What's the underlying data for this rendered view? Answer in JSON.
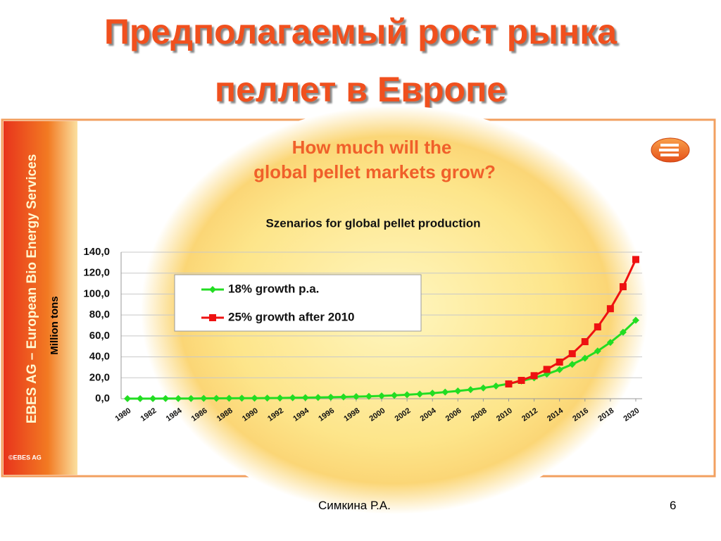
{
  "slide": {
    "title_line1": "Предполагаемый рост рынка",
    "title_line2": "пеллет в Европе",
    "footer_author": "Симкина Р.А.",
    "page_number": "6"
  },
  "sidebar": {
    "text": "EBES AG – European Bio Energy Services",
    "copyright": "©EBES AG"
  },
  "chart_data": {
    "type": "line",
    "title": "How much will the global pellet markets grow?",
    "subtitle": "Szenarios for global pellet production",
    "y_label": "Million tons",
    "x": [
      1980,
      1981,
      1982,
      1983,
      1984,
      1985,
      1986,
      1987,
      1988,
      1989,
      1990,
      1991,
      1992,
      1993,
      1994,
      1995,
      1996,
      1997,
      1998,
      1999,
      2000,
      2001,
      2002,
      2003,
      2004,
      2005,
      2006,
      2007,
      2008,
      2009,
      2010,
      2011,
      2012,
      2013,
      2014,
      2015,
      2016,
      2017,
      2018,
      2019,
      2020
    ],
    "series": [
      {
        "name": "18% growth p.a.",
        "color": "#22dd22",
        "marker": "diamond",
        "values": [
          0.1,
          0.1,
          0.1,
          0.2,
          0.2,
          0.2,
          0.3,
          0.3,
          0.4,
          0.5,
          0.5,
          0.6,
          0.7,
          0.9,
          1.0,
          1.2,
          1.4,
          1.7,
          2.0,
          2.3,
          2.7,
          3.2,
          3.8,
          4.5,
          5.3,
          6.3,
          7.4,
          8.7,
          10.3,
          12.1,
          14.3,
          16.9,
          19.9,
          23.5,
          27.8,
          32.8,
          38.7,
          45.6,
          53.8,
          63.5,
          75.0
        ]
      },
      {
        "name": "25% growth after 2010",
        "color": "#ee1111",
        "marker": "square",
        "values": [
          null,
          null,
          null,
          null,
          null,
          null,
          null,
          null,
          null,
          null,
          null,
          null,
          null,
          null,
          null,
          null,
          null,
          null,
          null,
          null,
          null,
          null,
          null,
          null,
          null,
          null,
          null,
          null,
          null,
          null,
          14.1,
          17.5,
          22.0,
          28.0,
          35.0,
          43.0,
          54.5,
          68.6,
          86.0,
          107.0,
          133.0
        ]
      }
    ],
    "xlim": [
      1979.5,
      2020.5
    ],
    "xticks": [
      1980,
      1982,
      1984,
      1986,
      1988,
      1990,
      1992,
      1994,
      1996,
      1998,
      2000,
      2002,
      2004,
      2006,
      2008,
      2010,
      2012,
      2014,
      2016,
      2018,
      2020
    ],
    "ylim": [
      0,
      140
    ],
    "yticks": [
      {
        "value": 0,
        "label": "0,0"
      },
      {
        "value": 20,
        "label": "20,0"
      },
      {
        "value": 40,
        "label": "40,0"
      },
      {
        "value": 60,
        "label": "60,0"
      },
      {
        "value": 80,
        "label": "80,0"
      },
      {
        "value": 100,
        "label": "100,0"
      },
      {
        "value": 120,
        "label": "120,0"
      },
      {
        "value": 140,
        "label": "140,0"
      }
    ],
    "grid": true
  }
}
